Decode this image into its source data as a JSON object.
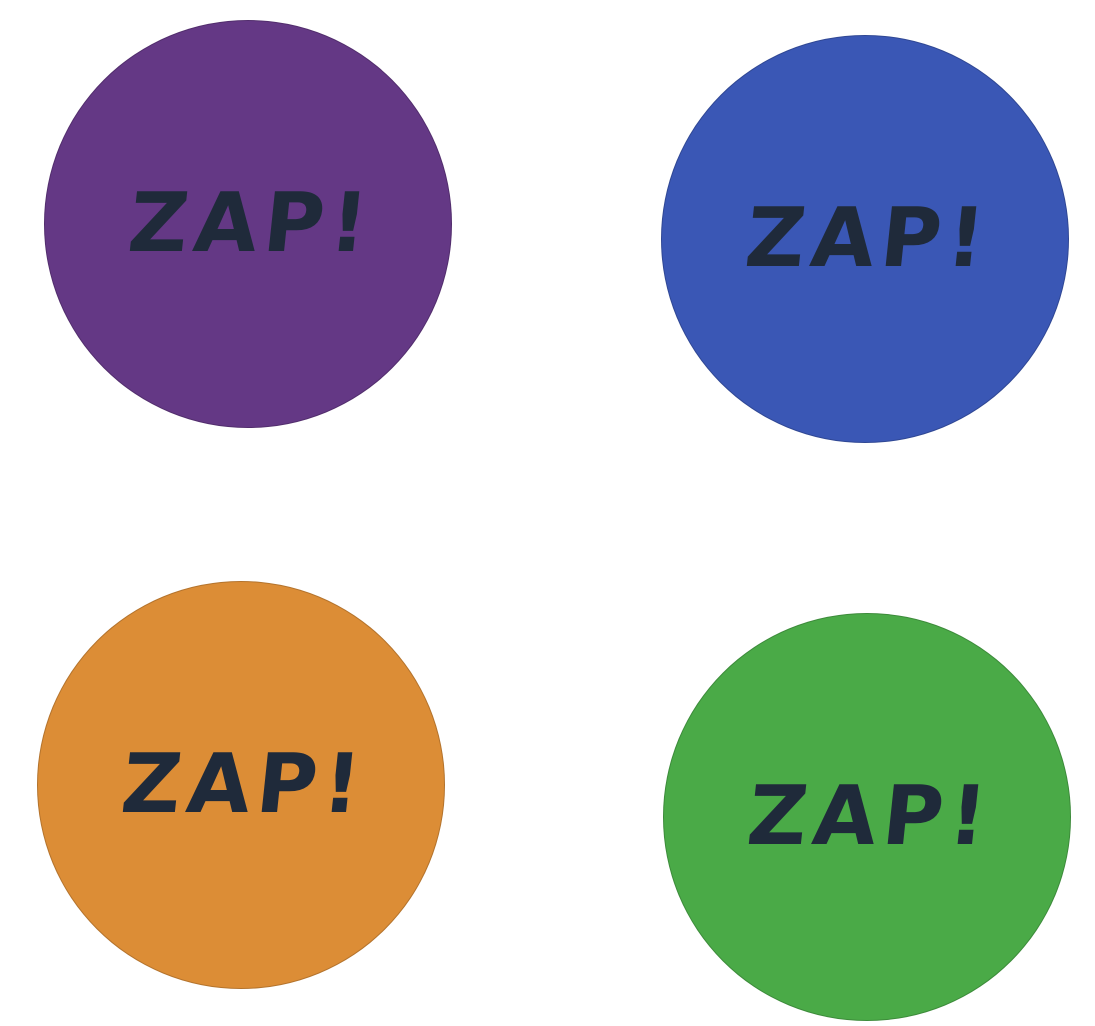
{
  "buttons": [
    {
      "label": "ZAP!",
      "color": "#643885"
    },
    {
      "label": "ZAP!",
      "color": "#3a57b5"
    },
    {
      "label": "ZAP!",
      "color": "#dc8d36"
    },
    {
      "label": "ZAP!",
      "color": "#4aaa47"
    }
  ],
  "colors": {
    "background": "#ffffff",
    "label_text": "#1f2a3a"
  }
}
